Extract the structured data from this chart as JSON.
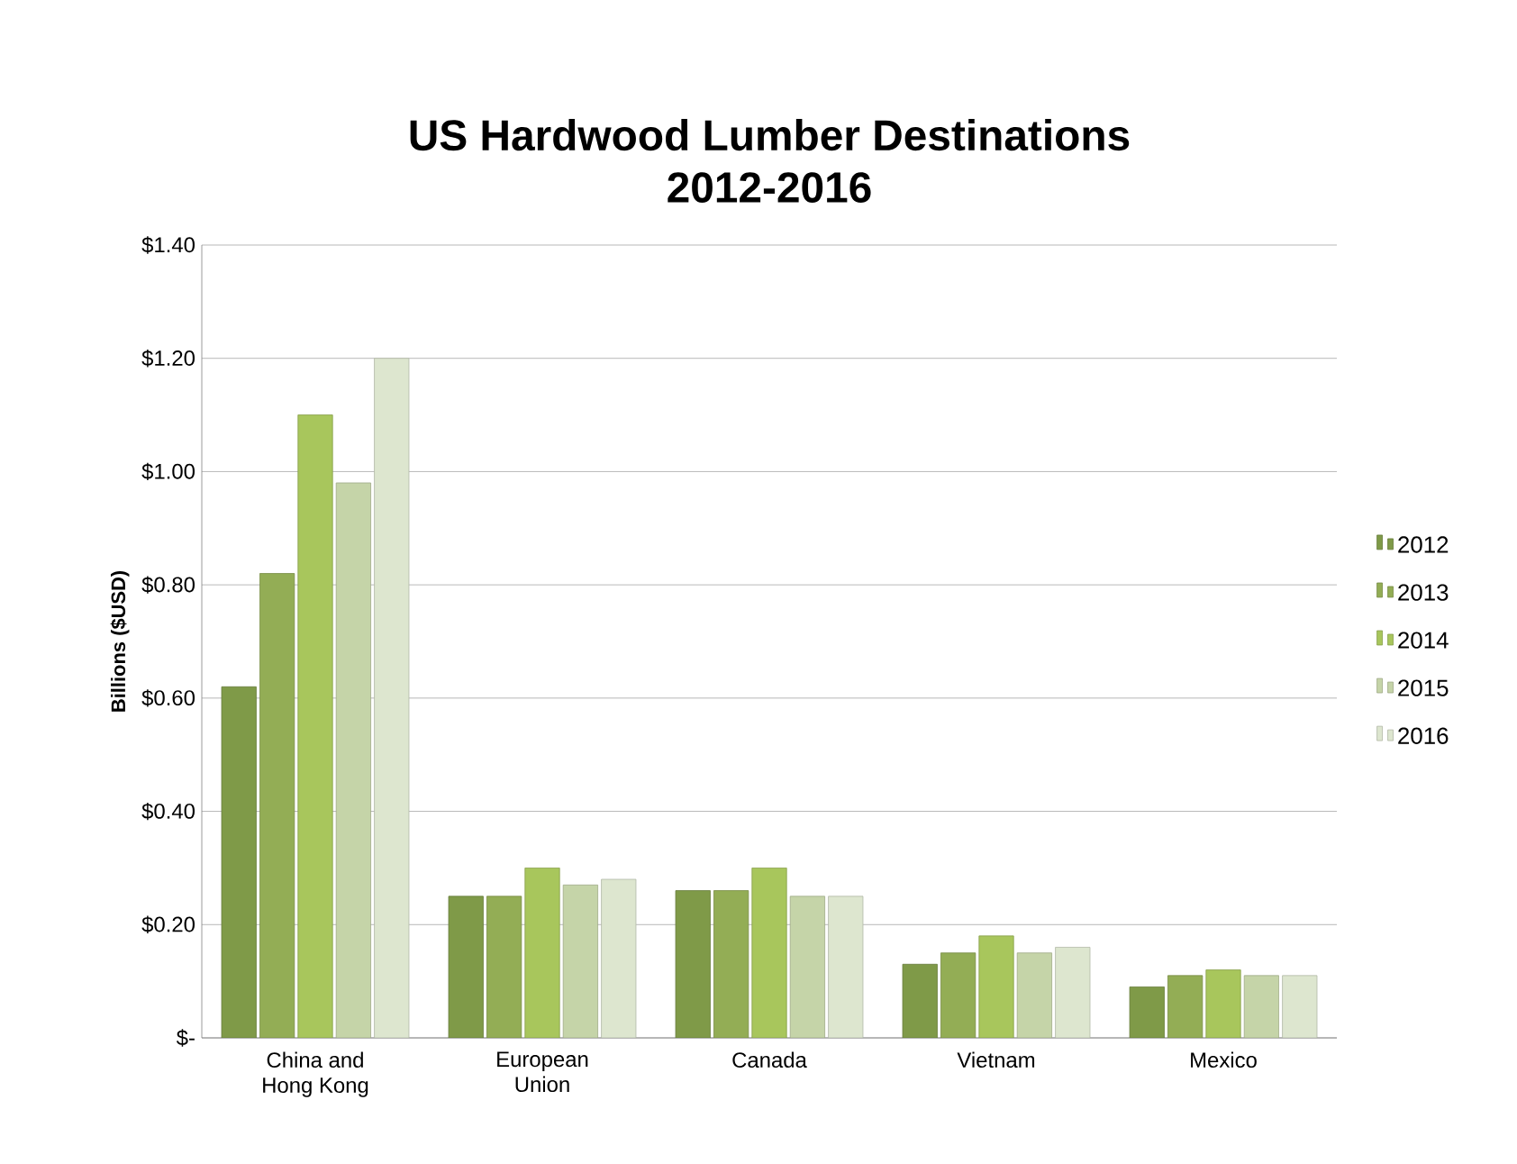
{
  "chart_data": {
    "type": "bar",
    "title": "US Hardwood Lumber Destinations\n2012-2016",
    "ylabel": "Billions ($USD)",
    "categories": [
      "China and\nHong Kong",
      "European\nUnion",
      "Canada",
      "Vietnam",
      "Mexico"
    ],
    "series": [
      {
        "name": "2012",
        "color": "#7f9a48",
        "values": [
          0.62,
          0.25,
          0.26,
          0.13,
          0.09
        ]
      },
      {
        "name": "2013",
        "color": "#93ad55",
        "values": [
          0.82,
          0.25,
          0.26,
          0.15,
          0.11
        ]
      },
      {
        "name": "2014",
        "color": "#a8c65c",
        "values": [
          1.1,
          0.3,
          0.3,
          0.18,
          0.12
        ]
      },
      {
        "name": "2015",
        "color": "#c5d4a8",
        "values": [
          0.98,
          0.27,
          0.25,
          0.15,
          0.11
        ]
      },
      {
        "name": "2016",
        "color": "#dde6cf",
        "values": [
          1.2,
          0.28,
          0.25,
          0.16,
          0.11
        ]
      }
    ],
    "ylim": [
      0,
      1.4
    ],
    "yticks": [
      {
        "value": 0,
        "label": "$-"
      },
      {
        "value": 0.2,
        "label": "$0.20"
      },
      {
        "value": 0.4,
        "label": "$0.40"
      },
      {
        "value": 0.6,
        "label": "$0.60"
      },
      {
        "value": 0.8,
        "label": "$0.80"
      },
      {
        "value": 1.0,
        "label": "$1.00"
      },
      {
        "value": 1.2,
        "label": "$1.20"
      },
      {
        "value": 1.4,
        "label": "$1.40"
      }
    ],
    "grid": "y",
    "legend": "right"
  }
}
